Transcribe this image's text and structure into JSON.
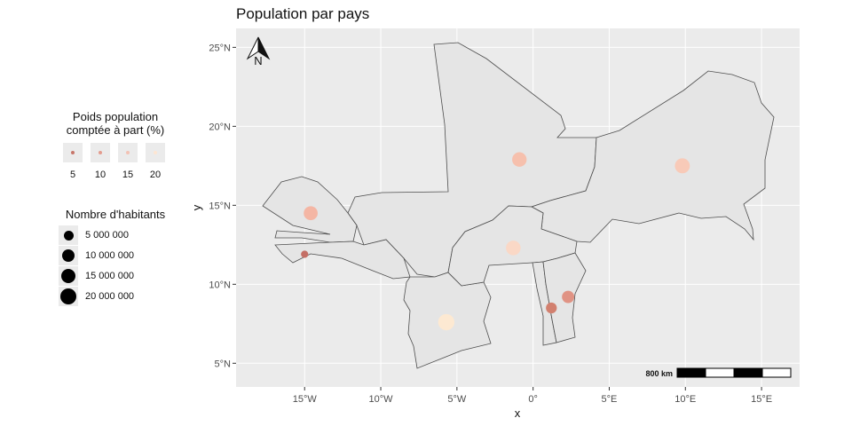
{
  "title": "Population par pays",
  "colors": {
    "panel": "#ebebeb",
    "grid": "#ffffff",
    "country_fill": "#e5e5e5",
    "country_stroke": "#4d4d4d"
  },
  "legend_share": {
    "title_line1": "Poids population",
    "title_line2": "comptée à part (%)",
    "items": [
      {
        "label": "5",
        "color": "#c7766a"
      },
      {
        "label": "10",
        "color": "#e39c8e"
      },
      {
        "label": "15",
        "color": "#f3c2b4"
      },
      {
        "label": "20",
        "color": "#fde6d3"
      }
    ]
  },
  "legend_size": {
    "title": "Nombre d'habitants",
    "items": [
      {
        "label": "5 000 000",
        "value": 5000000
      },
      {
        "label": "10 000 000",
        "value": 10000000
      },
      {
        "label": "15 000 000",
        "value": 15000000
      },
      {
        "label": "20 000 000",
        "value": 20000000
      }
    ]
  },
  "chart_data": {
    "type": "scatter",
    "title": "Population par pays",
    "xlabel": "x",
    "ylabel": "y",
    "xlim": [
      -19.5,
      17.5
    ],
    "ylim": [
      3.5,
      26.2
    ],
    "x_ticks": [
      {
        "value": -15,
        "label": "15°W"
      },
      {
        "value": -10,
        "label": "10°W"
      },
      {
        "value": -5,
        "label": "5°W"
      },
      {
        "value": 0,
        "label": "0°"
      },
      {
        "value": 5,
        "label": "5°E"
      },
      {
        "value": 10,
        "label": "10°E"
      },
      {
        "value": 15,
        "label": "15°E"
      }
    ],
    "y_ticks": [
      {
        "value": 5,
        "label": "5°N"
      },
      {
        "value": 10,
        "label": "10°N"
      },
      {
        "value": 15,
        "label": "15°N"
      },
      {
        "value": 20,
        "label": "20°N"
      },
      {
        "value": 25,
        "label": "25°N"
      }
    ],
    "north_arrow_label": "N",
    "scale_bar_label": "800 km",
    "points": [
      {
        "lon": -14.6,
        "lat": 14.5,
        "population": 14000000,
        "share": 16,
        "color": "#f4b6a4"
      },
      {
        "lon": -15.0,
        "lat": 11.9,
        "population": 1800000,
        "share": 6,
        "color": "#c46f66"
      },
      {
        "lon": -5.7,
        "lat": 7.6,
        "population": 21000000,
        "share": 20,
        "color": "#fde9d2"
      },
      {
        "lon": -0.9,
        "lat": 17.9,
        "population": 15500000,
        "share": 17,
        "color": "#f6c0ad"
      },
      {
        "lon": -1.3,
        "lat": 12.3,
        "population": 16000000,
        "share": 19,
        "color": "#fad8c6"
      },
      {
        "lon": 9.8,
        "lat": 17.5,
        "population": 17000000,
        "share": 18,
        "color": "#f8cab8"
      },
      {
        "lon": 2.3,
        "lat": 9.2,
        "population": 10000000,
        "share": 11,
        "color": "#e09384"
      },
      {
        "lon": 1.2,
        "lat": 8.5,
        "population": 7000000,
        "share": 7,
        "color": "#d2806f"
      }
    ]
  }
}
